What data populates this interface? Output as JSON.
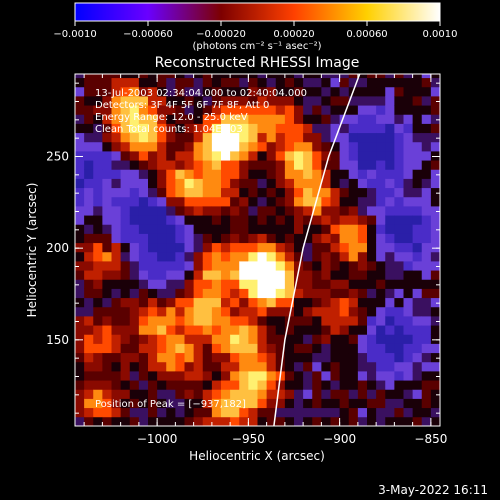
{
  "chart_data": {
    "type": "heatmap",
    "title": "Reconstructed RHESSI Image",
    "xlabel": "Heliocentric X (arcsec)",
    "ylabel": "Heliocentric Y (arcsec)",
    "xlim": [
      -1045,
      -845
    ],
    "ylim": [
      103,
      295
    ],
    "x_ticks": [
      -1000,
      -950,
      -900,
      -850
    ],
    "x_tick_labels": [
      "−1000",
      "−950",
      "−900",
      "−850"
    ],
    "y_ticks": [
      150,
      200,
      250
    ],
    "y_tick_labels": [
      "150",
      "200",
      "250"
    ],
    "colorbar": {
      "range": [
        -0.001,
        0.001
      ],
      "ticks": [
        -0.001,
        -0.0006,
        -0.0002,
        0.0002,
        0.0006,
        0.001
      ],
      "tick_labels": [
        "−0.0010",
        "−0.00060",
        "−0.00020",
        "0.00020",
        "0.00060",
        "0.0010"
      ],
      "units_label": "(photons cm⁻² s⁻¹ asec⁻²)",
      "colors": [
        "#0000ff",
        "#6a00ff",
        "#7d0000",
        "#ff4000",
        "#ffd000",
        "#ffffff"
      ]
    },
    "annotations": [
      "13-Jul-2003 02:34:04.000 to 02:40:04.000",
      "Detectors: 3F 4F 5F 6F 7F 8F, Att 0",
      "Energy Range: 12.0 - 25.0 keV",
      "Clean    Total counts: 1.04E+03"
    ],
    "peak_label": "Position of Peak = [−937,182]",
    "peak": [
      -937,
      182
    ],
    "limb_curve": [
      [
        -936,
        103
      ],
      [
        -930,
        150
      ],
      [
        -920,
        200
      ],
      [
        -906,
        250
      ],
      [
        -889,
        295
      ]
    ],
    "sources": [
      {
        "x": -937,
        "y": 182,
        "amp": 1.0
      },
      {
        "x": -946,
        "y": 190,
        "amp": 0.7
      },
      {
        "x": -958,
        "y": 262,
        "amp": 0.75
      },
      {
        "x": -968,
        "y": 255,
        "amp": 0.6
      },
      {
        "x": -1008,
        "y": 262,
        "amp": 0.65
      },
      {
        "x": -1015,
        "y": 278,
        "amp": 0.55
      },
      {
        "x": -988,
        "y": 234,
        "amp": 0.55
      },
      {
        "x": -970,
        "y": 230,
        "amp": 0.45
      },
      {
        "x": -922,
        "y": 248,
        "amp": 0.6
      },
      {
        "x": -915,
        "y": 228,
        "amp": 0.5
      },
      {
        "x": -892,
        "y": 205,
        "amp": 0.55
      },
      {
        "x": -970,
        "y": 190,
        "amp": 0.55
      },
      {
        "x": -975,
        "y": 165,
        "amp": 0.6
      },
      {
        "x": -1000,
        "y": 160,
        "amp": 0.45
      },
      {
        "x": -990,
        "y": 140,
        "amp": 0.45
      },
      {
        "x": -955,
        "y": 150,
        "amp": 0.55
      },
      {
        "x": -945,
        "y": 128,
        "amp": 0.65
      },
      {
        "x": -960,
        "y": 113,
        "amp": 0.55
      },
      {
        "x": -1028,
        "y": 195,
        "amp": 0.35
      },
      {
        "x": -1030,
        "y": 150,
        "amp": 0.35
      },
      {
        "x": -1032,
        "y": 118,
        "amp": 0.4
      },
      {
        "x": -900,
        "y": 165,
        "amp": 0.35
      },
      {
        "x": -935,
        "y": 270,
        "amp": 0.4
      }
    ],
    "negative_regions": [
      {
        "x": -1005,
        "y": 215,
        "amp": 0.6
      },
      {
        "x": -880,
        "y": 255,
        "amp": 0.6
      },
      {
        "x": -865,
        "y": 210,
        "amp": 0.55
      },
      {
        "x": -870,
        "y": 150,
        "amp": 0.5
      },
      {
        "x": -1040,
        "y": 240,
        "amp": 0.45
      },
      {
        "x": -990,
        "y": 195,
        "amp": 0.35
      }
    ]
  },
  "footer": {
    "date": "3-May-2022 16:11"
  }
}
